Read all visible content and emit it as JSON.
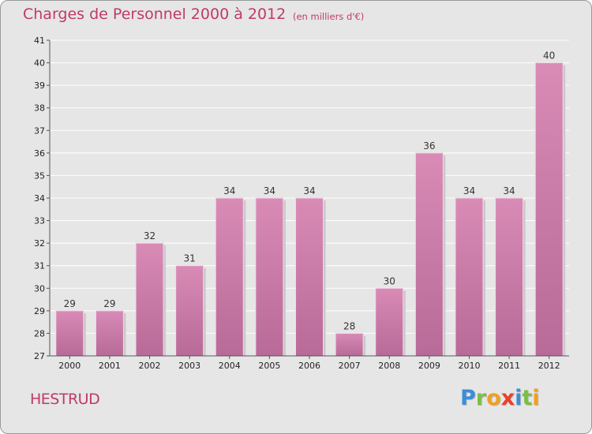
{
  "header": {
    "title": "Charges de Personnel 2000 à 2012",
    "subtitle": "(en milliers d'€)"
  },
  "footer": {
    "commune": "HESTRUD",
    "logo_letters": [
      {
        "char": "P",
        "color": "#3a8ed8"
      },
      {
        "char": "r",
        "color": "#7ac043"
      },
      {
        "char": "o",
        "color": "#f0a020"
      },
      {
        "char": "x",
        "color": "#e8412c"
      },
      {
        "char": "i",
        "color": "#3a8ed8"
      },
      {
        "char": "t",
        "color": "#7ac043"
      },
      {
        "char": "i",
        "color": "#f0a020"
      }
    ]
  },
  "chart_data": {
    "type": "bar",
    "categories": [
      "2000",
      "2001",
      "2002",
      "2003",
      "2004",
      "2005",
      "2006",
      "2007",
      "2008",
      "2009",
      "2010",
      "2011",
      "2012"
    ],
    "values": [
      29,
      29,
      32,
      31,
      34,
      34,
      34,
      28,
      30,
      36,
      34,
      34,
      40
    ],
    "data_labels": [
      "29",
      "29",
      "32",
      "31",
      "34",
      "34",
      "34",
      "28",
      "30",
      "36",
      "34",
      "34",
      "40"
    ],
    "ylim": [
      27,
      41
    ],
    "yticks": [
      27,
      28,
      29,
      30,
      31,
      32,
      33,
      34,
      35,
      36,
      37,
      38,
      39,
      40,
      41
    ],
    "grid": true,
    "bar_color": "#d98bb6",
    "bar_color_dark": "#b86a98"
  }
}
